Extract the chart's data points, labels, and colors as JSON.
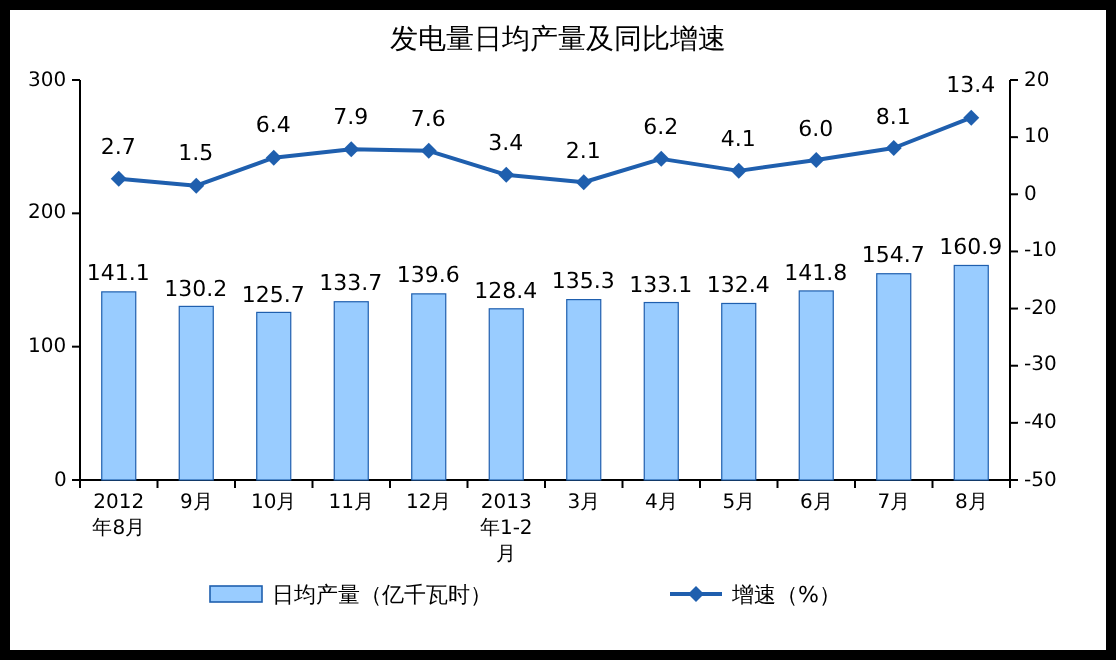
{
  "chart_data": {
    "type": "bar",
    "title": "发电量日均产量及同比增速",
    "categories": [
      "2012年8月",
      "9月",
      "10月",
      "11月",
      "12月",
      "2013年1-2月",
      "3月",
      "4月",
      "5月",
      "6月",
      "7月",
      "8月"
    ],
    "series": [
      {
        "name": "日均产量（亿千瓦时）",
        "color": "#99ccff",
        "values": [
          141.1,
          130.2,
          125.7,
          133.7,
          139.6,
          128.4,
          135.3,
          133.1,
          132.4,
          141.8,
          154.7,
          160.9
        ]
      },
      {
        "name": "增速（%）",
        "type": "line",
        "axis": "y2",
        "color": "#1f5fae",
        "marker": "diamond",
        "values": [
          2.7,
          1.5,
          6.4,
          7.9,
          7.6,
          3.4,
          2.1,
          6.2,
          4.1,
          6.0,
          8.1,
          13.4
        ],
        "value_labels": [
          "2.7",
          "1.5",
          "6.4",
          "7.9",
          "7.6",
          "3.4",
          "2.1",
          "6.2",
          "4.1",
          "6.0",
          "8.1",
          "13.4"
        ]
      }
    ],
    "ylim": [
      0,
      300
    ],
    "yticks": [
      0,
      100,
      200,
      300
    ],
    "y2lim": [
      -50,
      20
    ],
    "y2ticks": [
      -50,
      -40,
      -30,
      -20,
      -10,
      0,
      10,
      20
    ],
    "data_labels": true,
    "legend": "bottom",
    "grid": false
  }
}
